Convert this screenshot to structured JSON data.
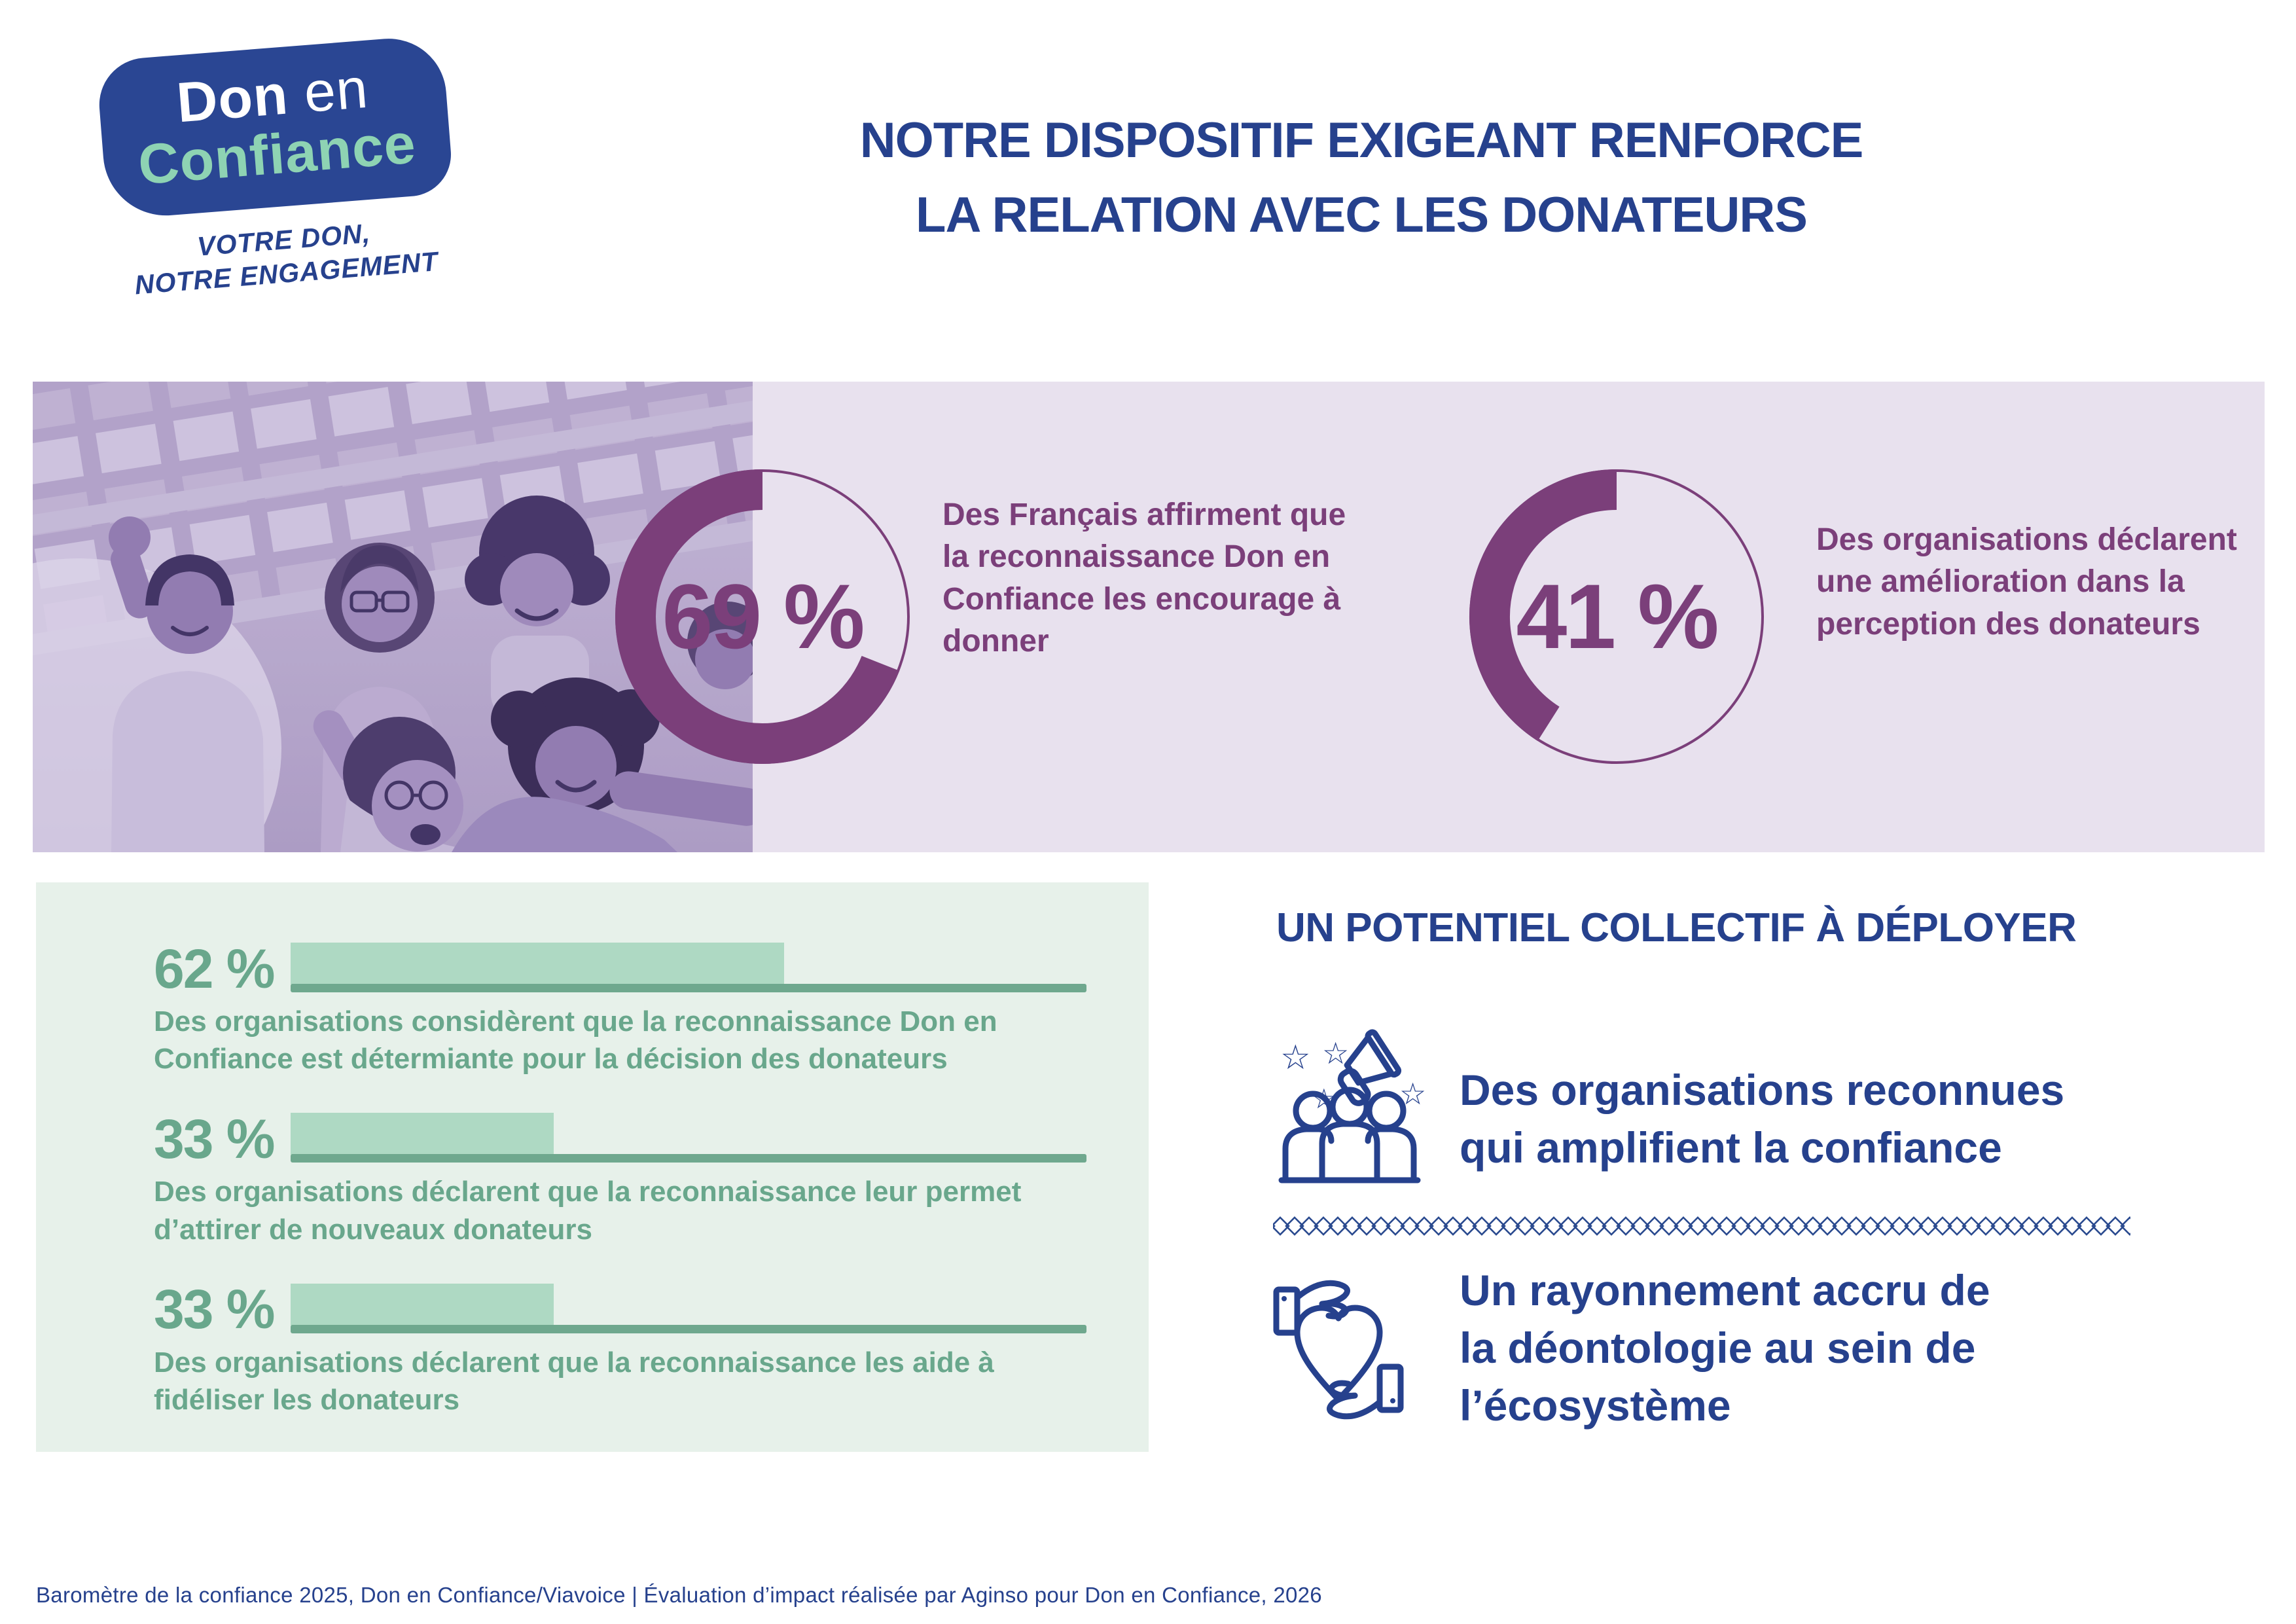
{
  "logo": {
    "word_don": "Don",
    "word_en": "en",
    "word_confiance": "Confiance",
    "tagline_line1": "VOTRE DON,",
    "tagline_line2": "NOTRE ENGAGEMENT",
    "blob_color": "#2a4693",
    "confiance_color": "#8ed3b3"
  },
  "header": {
    "title_line1": "NOTRE DISPOSITIF EXIGEANT RENFORCE",
    "title_line2": "LA RELATION AVEC LES DONATEURS",
    "color": "#26418d"
  },
  "band": {
    "background": "#e8e1ee",
    "accent": "#7b3f7a",
    "photo_alt": "groupe d'amis prenant un selfie (duotone violet)",
    "stats": [
      {
        "label": "69 %",
        "caption_lines": [
          "Des Français affirment que",
          "la reconnaissance Don en",
          "Confiance les encourage à",
          "donner"
        ]
      },
      {
        "label": "41 %",
        "caption_lines": [
          "Des organisations déclarent",
          "une amélioration dans la",
          "perception des donateurs"
        ]
      }
    ]
  },
  "green_panel": {
    "background": "#e7f1ea",
    "text_color": "#69a78c",
    "bar_fill": "#aed9c3",
    "bar_track": "#6fa88e",
    "items": [
      {
        "percent_label": "62 %",
        "value": 62,
        "caption_lines": [
          "Des organisations considèrent que la reconnaissance Don en",
          "Confiance est détermiante pour la décision des donateurs"
        ]
      },
      {
        "percent_label": "33 %",
        "value": 33,
        "caption_lines": [
          "Des organisations déclarent que la reconnaissance leur permet",
          "d’attirer de nouveaux donateurs"
        ]
      },
      {
        "percent_label": "33 %",
        "value": 33,
        "caption_lines": [
          "Des organisations déclarent que la reconnaissance les aide à",
          "fidéliser les donateurs"
        ]
      }
    ]
  },
  "right_column": {
    "heading": "UN POTENTIEL COLLECTIF À DÉPLOYER",
    "color": "#26418d",
    "items": [
      {
        "icon": "crowd-megaphone-stars-icon",
        "lines": [
          "Des organisations reconnues",
          "qui amplifient la confiance"
        ]
      },
      {
        "icon": "hands-holding-heart-icon",
        "lines": [
          "Un rayonnement accru de",
          "la déontologie au sein de",
          "l’écosystème"
        ]
      }
    ]
  },
  "footer": {
    "text": "Baromètre de la confiance 2025, Don en Confiance/Viavoice | Évaluation d’impact réalisée par Aginso pour Don en Confiance, 2026"
  },
  "chart_data": [
    {
      "type": "pie",
      "subtype": "donut",
      "value": 69,
      "unit": "%",
      "label": "69 %",
      "caption": "Des Français affirment que la reconnaissance Don en Confiance les encourage à donner",
      "ring_color": "#7b3f7a",
      "remainder_style": "thin-outline",
      "start": "top",
      "direction": "counterclockwise"
    },
    {
      "type": "pie",
      "subtype": "donut",
      "value": 41,
      "unit": "%",
      "label": "41 %",
      "caption": "Des organisations déclarent une amélioration dans la perception des donateurs",
      "ring_color": "#7b3f7a",
      "remainder_style": "thin-outline",
      "start": "top",
      "direction": "counterclockwise"
    },
    {
      "type": "bar",
      "orientation": "horizontal",
      "unit": "%",
      "xlim": [
        0,
        100
      ],
      "values": [
        62,
        33,
        33
      ],
      "categories": [
        "Des organisations considèrent que la reconnaissance Don en Confiance est détermiante pour la décision des donateurs",
        "Des organisations déclarent que la reconnaissance leur permet d’attirer de nouveaux donateurs",
        "Des organisations déclarent que la reconnaissance les aide à fidéliser les donateurs"
      ],
      "bar_color": "#aed9c3",
      "baseline_color": "#6fa88e"
    }
  ]
}
